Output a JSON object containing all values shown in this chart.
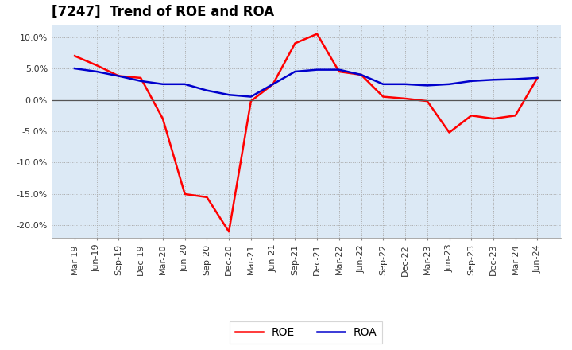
{
  "title": "[7247]  Trend of ROE and ROA",
  "x_labels": [
    "Mar-19",
    "Jun-19",
    "Sep-19",
    "Dec-19",
    "Mar-20",
    "Jun-20",
    "Sep-20",
    "Dec-20",
    "Mar-21",
    "Jun-21",
    "Sep-21",
    "Dec-21",
    "Mar-22",
    "Jun-22",
    "Sep-22",
    "Dec-22",
    "Mar-23",
    "Jun-23",
    "Sep-23",
    "Dec-23",
    "Mar-24",
    "Jun-24"
  ],
  "roe": [
    7.0,
    5.5,
    3.8,
    3.5,
    -3.0,
    -15.0,
    -15.5,
    -21.0,
    -0.2,
    2.5,
    9.0,
    10.5,
    4.5,
    4.0,
    0.5,
    0.2,
    -0.2,
    -5.2,
    -2.5,
    -3.0,
    -2.5,
    3.5
  ],
  "roa": [
    5.0,
    4.5,
    3.8,
    3.0,
    2.5,
    2.5,
    1.5,
    0.8,
    0.5,
    2.5,
    4.5,
    4.8,
    4.8,
    4.0,
    2.5,
    2.5,
    2.3,
    2.5,
    3.0,
    3.2,
    3.3,
    3.5
  ],
  "roe_color": "#ff0000",
  "roa_color": "#0000cc",
  "bg_color": "#ffffff",
  "plot_bg_color": "#dce9f5",
  "ylim": [
    -22,
    12
  ],
  "yticks": [
    -20.0,
    -15.0,
    -10.0,
    -5.0,
    0.0,
    5.0,
    10.0
  ],
  "grid_color": "#aaaaaa",
  "zero_line_color": "#555555",
  "line_width": 1.8,
  "legend_roe": "ROE",
  "legend_roa": "ROA",
  "title_fontsize": 12,
  "tick_fontsize": 8
}
